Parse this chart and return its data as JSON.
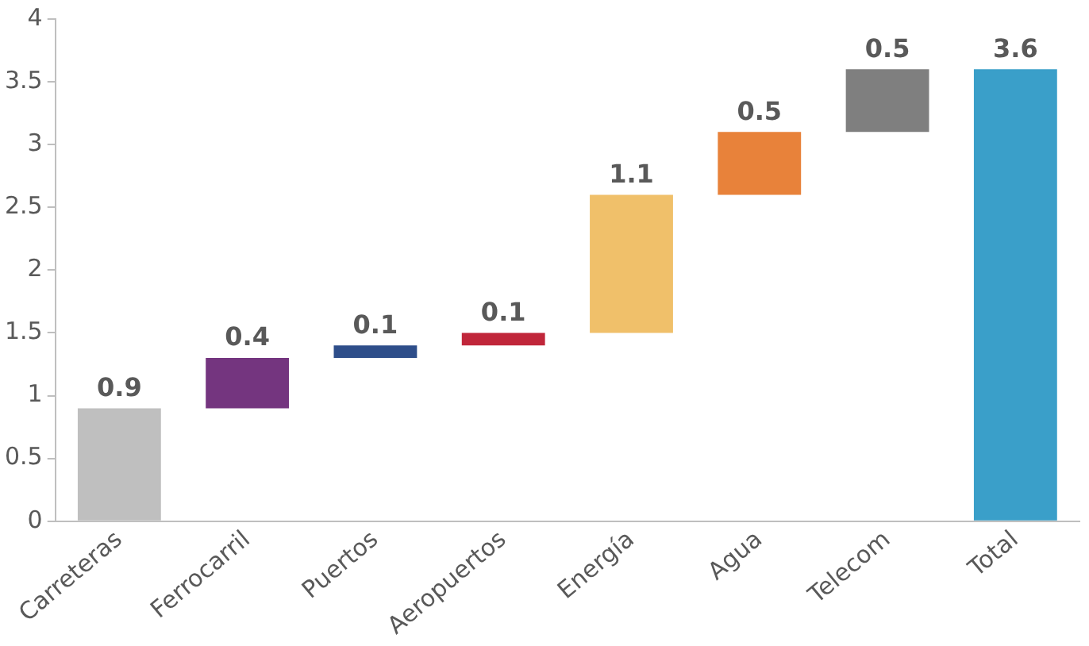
{
  "chart_data": {
    "type": "bar",
    "categories": [
      "Carreteras",
      "Ferrocarril",
      "Puertos",
      "Aeropuertos",
      "Energía",
      "Agua",
      "Telecom",
      "Total"
    ],
    "values": [
      0.9,
      0.4,
      0.1,
      0.1,
      1.1,
      0.5,
      0.5,
      3.6
    ],
    "base": [
      0,
      0.9,
      1.3,
      1.4,
      1.5,
      2.6,
      3.1,
      0
    ],
    "colors": [
      "#bfbfbf",
      "#74357f",
      "#2e4e8a",
      "#c0263a",
      "#f0c06a",
      "#e8823a",
      "#7f7f7f",
      "#3a9fc9"
    ],
    "ylim": [
      0,
      4
    ],
    "yticks": [
      0,
      0.5,
      1,
      1.5,
      2,
      2.5,
      3,
      3.5,
      4
    ],
    "data_labels": true,
    "grid": false,
    "legend": false
  }
}
